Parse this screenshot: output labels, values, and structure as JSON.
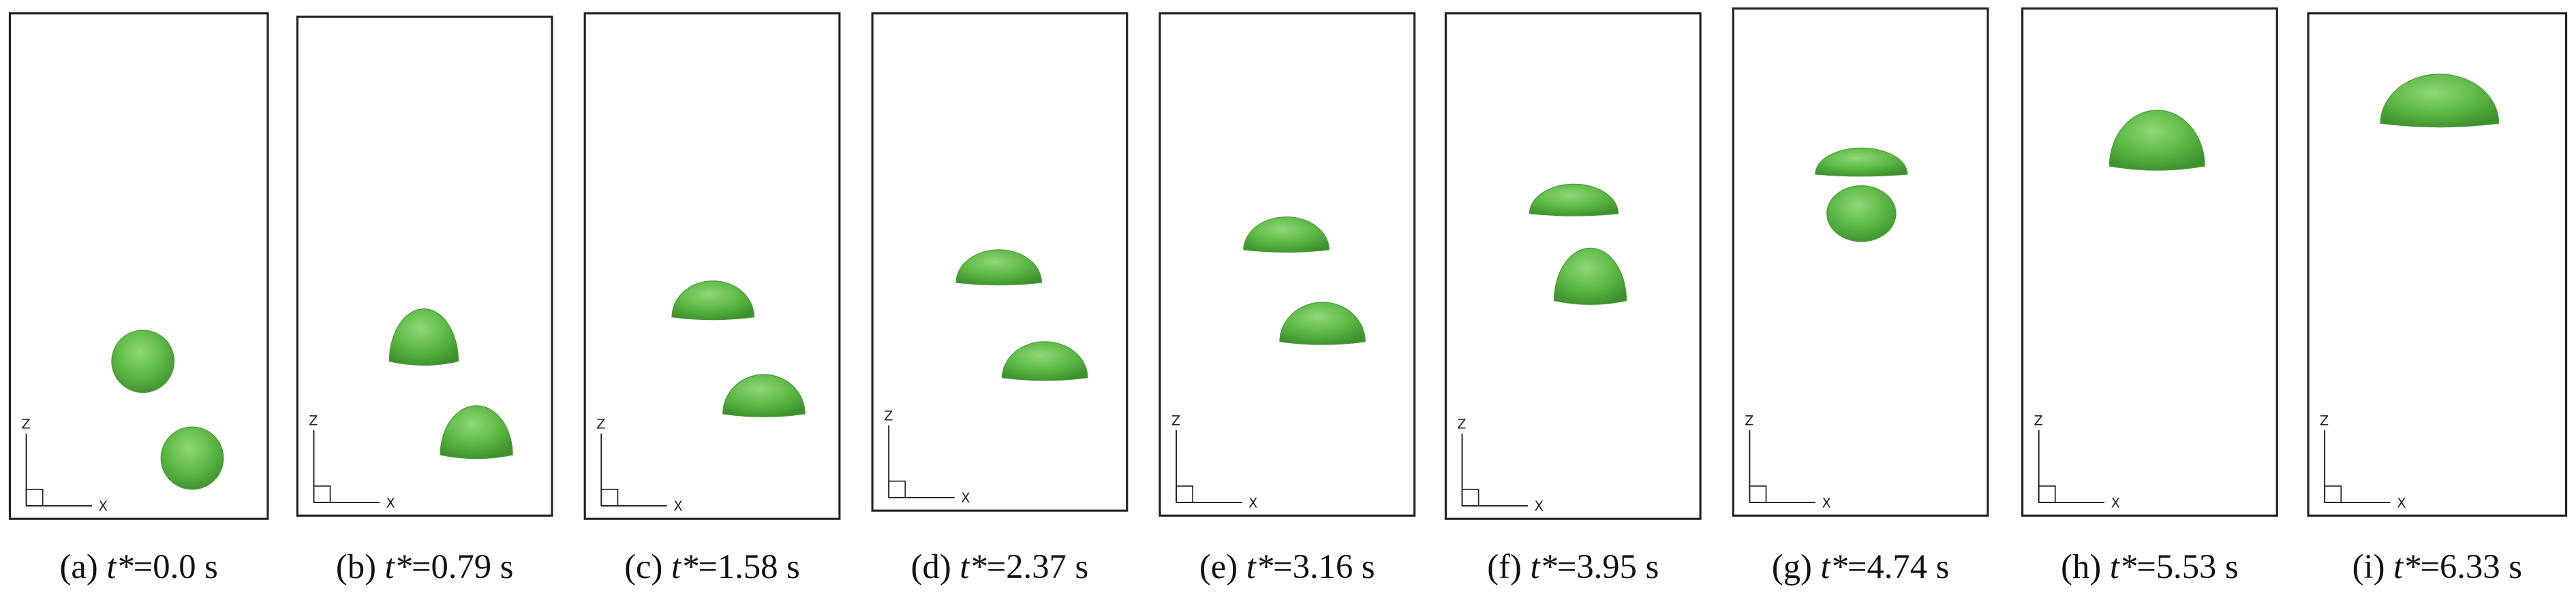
{
  "axis_labels": {
    "z": "Z",
    "x": "X"
  },
  "panels": [
    {
      "letter": "(a) ",
      "variable": "t*",
      "rest": "=0.0 s"
    },
    {
      "letter": "(b) ",
      "variable": "t*",
      "rest": "=0.79 s"
    },
    {
      "letter": "(c) ",
      "variable": "t*",
      "rest": "=1.58 s"
    },
    {
      "letter": "(d) ",
      "variable": "t*",
      "rest": "=2.37 s"
    },
    {
      "letter": "(e) ",
      "variable": "t*",
      "rest": "=3.16 s"
    },
    {
      "letter": "(f) ",
      "variable": "t*",
      "rest": "=3.95 s"
    },
    {
      "letter": "(g) ",
      "variable": "t*",
      "rest": "=4.74 s"
    },
    {
      "letter": "(h) ",
      "variable": "t*",
      "rest": "=5.53 s"
    },
    {
      "letter": "(i) ",
      "variable": "t*",
      "rest": "=6.33 s"
    }
  ]
}
